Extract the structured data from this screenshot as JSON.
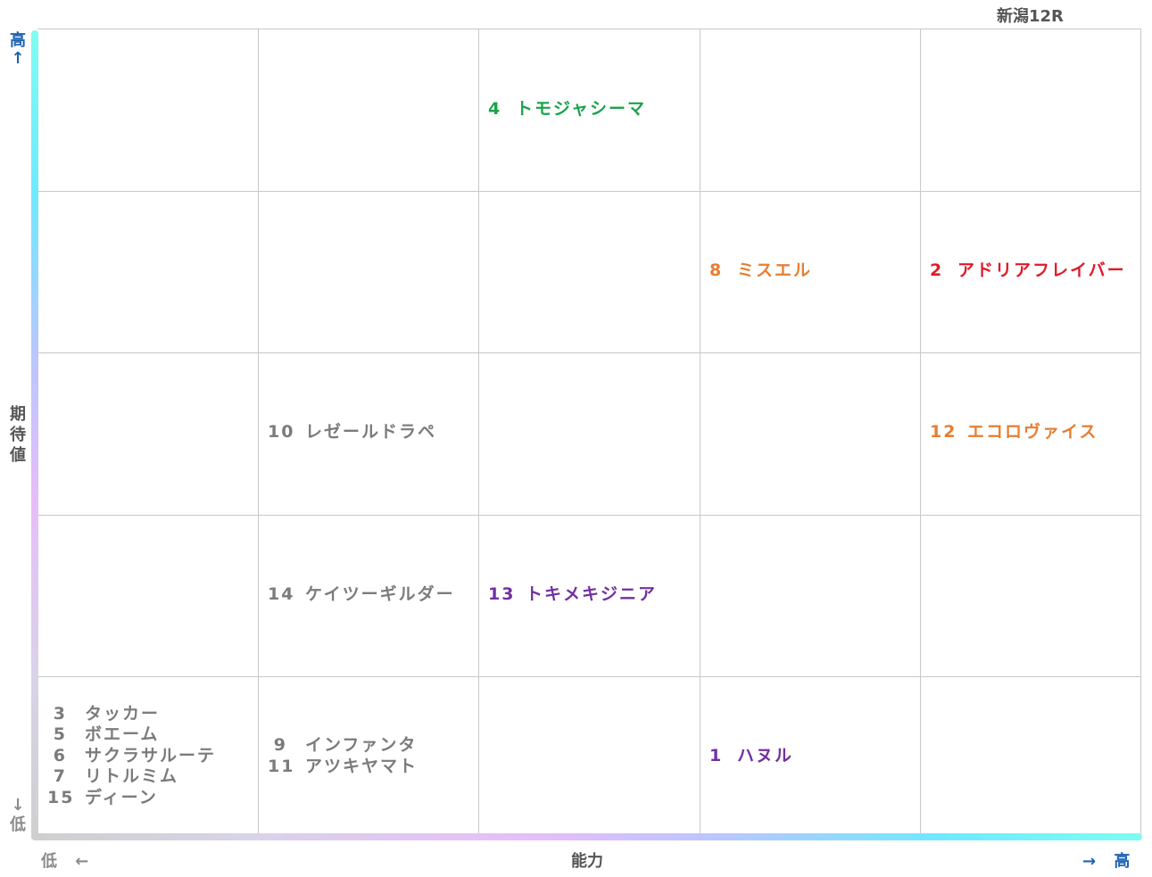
{
  "title": "新潟12R",
  "axes": {
    "y_label": "期待値",
    "y_high": "高↑",
    "y_low": "↓低",
    "x_label": "能力",
    "x_low": "低 ←",
    "x_high": "→ 高"
  },
  "chart_data": {
    "type": "scatter",
    "x_label": "能力",
    "y_label": "期待値",
    "grid": true,
    "columns": 5,
    "rows": 5,
    "colors": {
      "green": "#1aa34a",
      "red": "#e01a2a",
      "orange": "#e67e33",
      "purple": "#7230a0",
      "grey": "#7b7b7b"
    },
    "cells": [
      {
        "col": 3,
        "row": 1,
        "color": "green",
        "horses": [
          {
            "num": "4",
            "name": "トモジャシーマ"
          }
        ]
      },
      {
        "col": 4,
        "row": 2,
        "color": "orange",
        "horses": [
          {
            "num": "8",
            "name": "ミスエル"
          }
        ]
      },
      {
        "col": 5,
        "row": 2,
        "color": "red",
        "horses": [
          {
            "num": "2",
            "name": "アドリアフレイバー"
          }
        ]
      },
      {
        "col": 2,
        "row": 3,
        "color": "grey",
        "horses": [
          {
            "num": "10",
            "name": "レゼールドラペ"
          }
        ]
      },
      {
        "col": 5,
        "row": 3,
        "color": "orange",
        "horses": [
          {
            "num": "12",
            "name": "エコロヴァイス"
          }
        ]
      },
      {
        "col": 2,
        "row": 4,
        "color": "grey",
        "horses": [
          {
            "num": "14",
            "name": "ケイツーギルダー"
          }
        ]
      },
      {
        "col": 3,
        "row": 4,
        "color": "purple",
        "horses": [
          {
            "num": "13",
            "name": "トキメキジニア"
          }
        ]
      },
      {
        "col": 1,
        "row": 5,
        "color": "grey",
        "horses": [
          {
            "num": "3",
            "name": "タッカー"
          },
          {
            "num": "5",
            "name": "ボエーム"
          },
          {
            "num": "6",
            "name": "サクラサルーテ"
          },
          {
            "num": "7",
            "name": "リトルミム"
          },
          {
            "num": "15",
            "name": "ディーン"
          }
        ]
      },
      {
        "col": 2,
        "row": 5,
        "color": "grey",
        "horses": [
          {
            "num": "9",
            "name": "インファンタ"
          },
          {
            "num": "11",
            "name": "アツキヤマト"
          }
        ]
      },
      {
        "col": 4,
        "row": 5,
        "color": "purple",
        "horses": [
          {
            "num": "1",
            "name": "ハヌル"
          }
        ]
      }
    ]
  }
}
